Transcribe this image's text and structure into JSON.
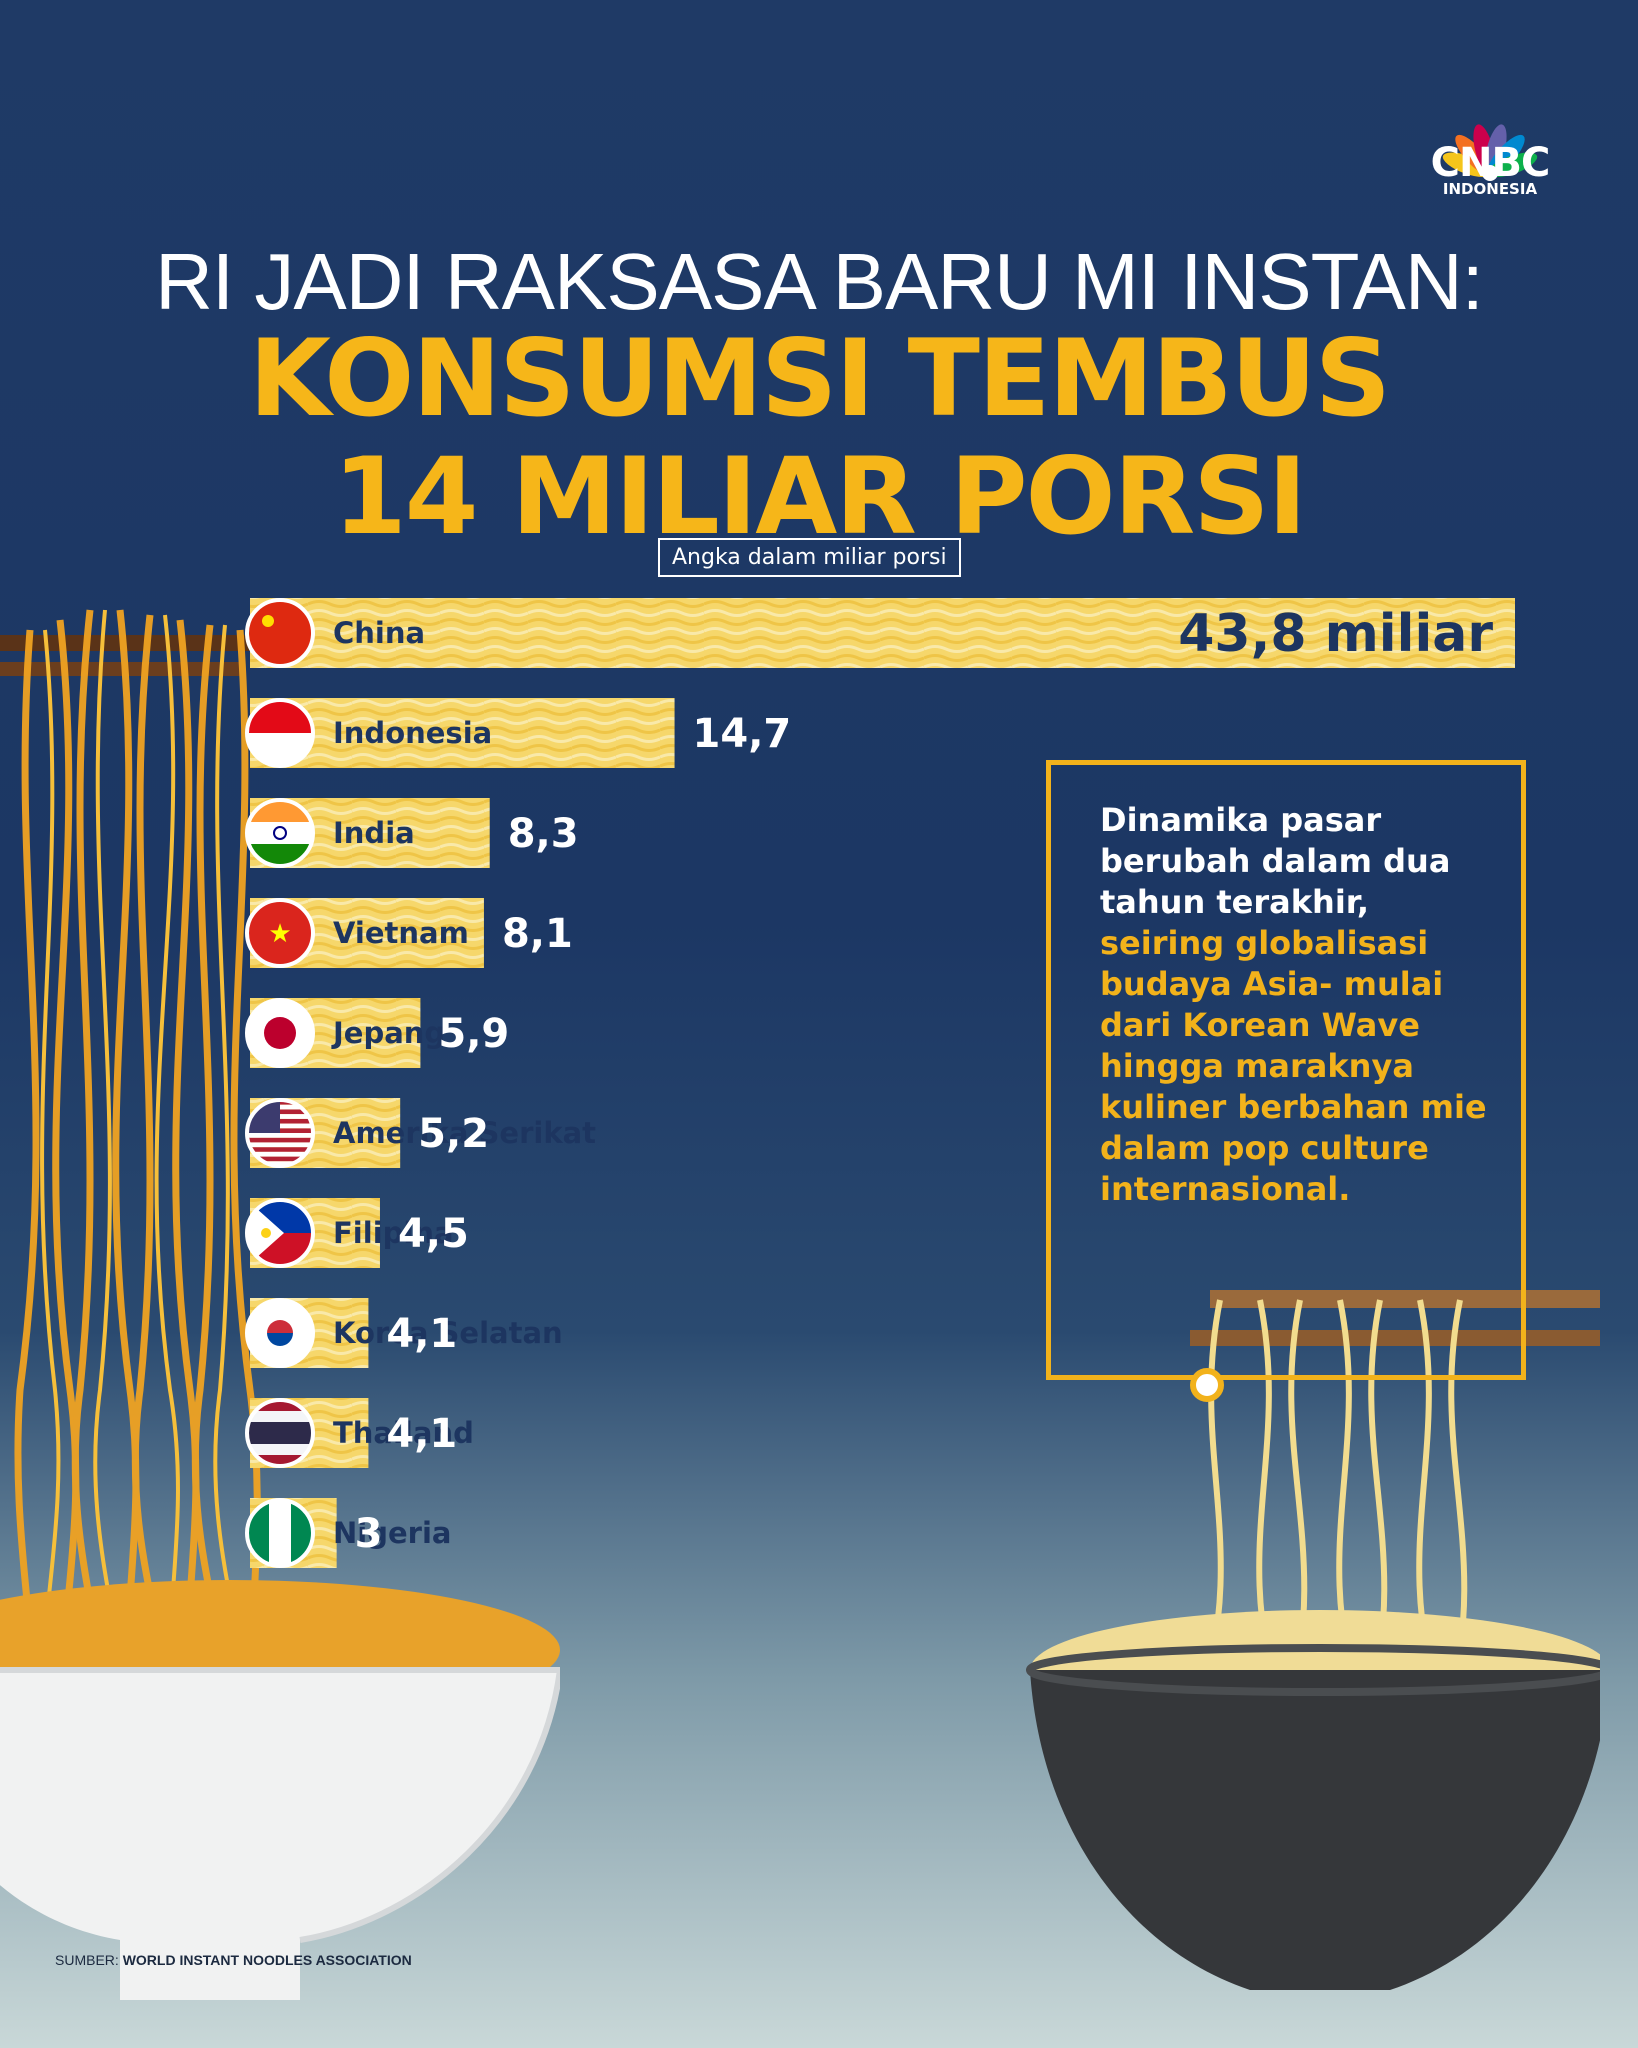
{
  "brand": {
    "name": "CNBC",
    "sub": "INDONESIA"
  },
  "title": {
    "line1": "RI JADI RAKSASA BARU MI INSTAN:",
    "line2": "KONSUMSI TEMBUS",
    "line3": "14 MILIAR PORSI"
  },
  "unit_label": "Angka dalam miliar porsi",
  "note": {
    "plain": "Dinamika pasar berubah dalam dua tahun terakhir,",
    "highlight": "seiring globalisasi budaya Asia- mulai dari Korean Wave hingga maraknya kuliner berbahan mie dalam pop culture internasional."
  },
  "source": {
    "prefix": "SUMBER:",
    "name": "WORLD INSTANT NOODLES ASSOCIATION"
  },
  "colors": {
    "background": "#1f3a66",
    "accent": "#f6b619",
    "bar": "#f6d76b",
    "text_dark": "#1d3560"
  },
  "chart_data": {
    "type": "bar",
    "orientation": "horizontal",
    "categories": [
      "China",
      "Indonesia",
      "India",
      "Vietnam",
      "Jepang",
      "Amerika Serikat",
      "Filipina",
      "Korea Selatan",
      "Thailand",
      "Nigeria"
    ],
    "values": [
      43.8,
      14.7,
      8.3,
      8.1,
      5.9,
      5.2,
      4.5,
      4.1,
      4.1,
      3
    ],
    "value_labels": [
      "43,8 miliar",
      "14,7",
      "8,3",
      "8,1",
      "5,9",
      "5,2",
      "4,5",
      "4,1",
      "4,1",
      "3"
    ],
    "flags": [
      "china-flag",
      "indonesia-flag",
      "india-flag",
      "vietnam-flag",
      "japan-flag",
      "usa-flag",
      "philippines-flag",
      "south-korea-flag",
      "thailand-flag",
      "nigeria-flag"
    ],
    "unit": "miliar porsi",
    "title": "",
    "xlabel": "",
    "ylabel": ""
  }
}
